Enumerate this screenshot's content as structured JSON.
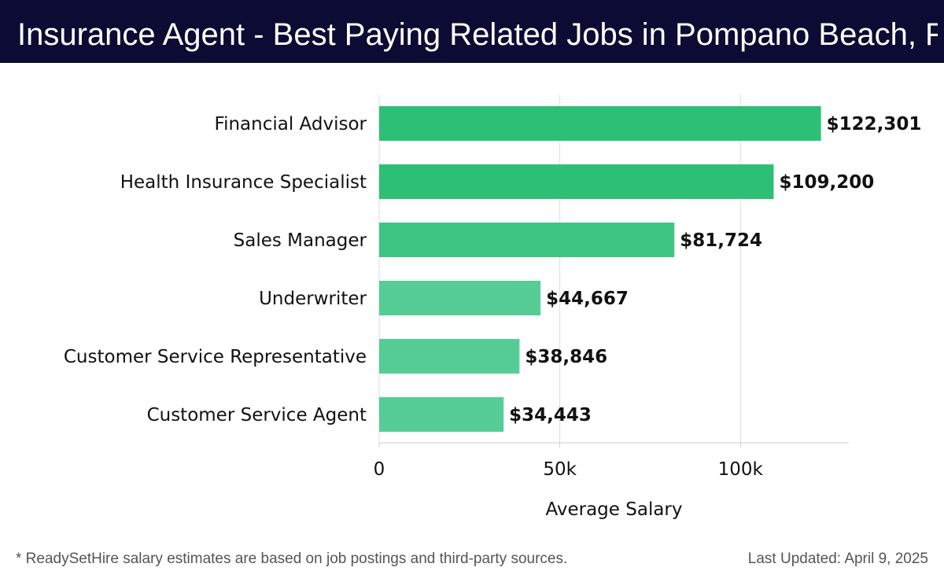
{
  "header": {
    "title": "Insurance Agent - Best Paying Related Jobs in Pompano Beach, FL"
  },
  "chart_data": {
    "type": "bar",
    "orientation": "horizontal",
    "categories": [
      "Financial Advisor",
      "Health Insurance Specialist",
      "Sales Manager",
      "Underwriter",
      "Customer Service Representative",
      "Customer Service Agent"
    ],
    "values": [
      122301,
      109200,
      81724,
      44667,
      38846,
      34443
    ],
    "value_labels": [
      "$122,301",
      "$109,200",
      "$81,724",
      "$44,667",
      "$38,846",
      "$34,443"
    ],
    "xlabel": "Average Salary",
    "ylabel": "",
    "xlim": [
      0,
      130000
    ],
    "x_ticks": [
      0,
      50000,
      100000
    ],
    "x_tick_labels": [
      "0",
      "50k",
      "100k"
    ],
    "grid": "vertical",
    "colors": [
      "#2ebf76",
      "#2ebf76",
      "#3ec585",
      "#56cd96",
      "#56cd96",
      "#56cd96"
    ]
  },
  "footer": {
    "note": "* ReadySetHire salary estimates are based on job postings and third-party sources.",
    "updated": "Last Updated: April 9, 2025"
  }
}
